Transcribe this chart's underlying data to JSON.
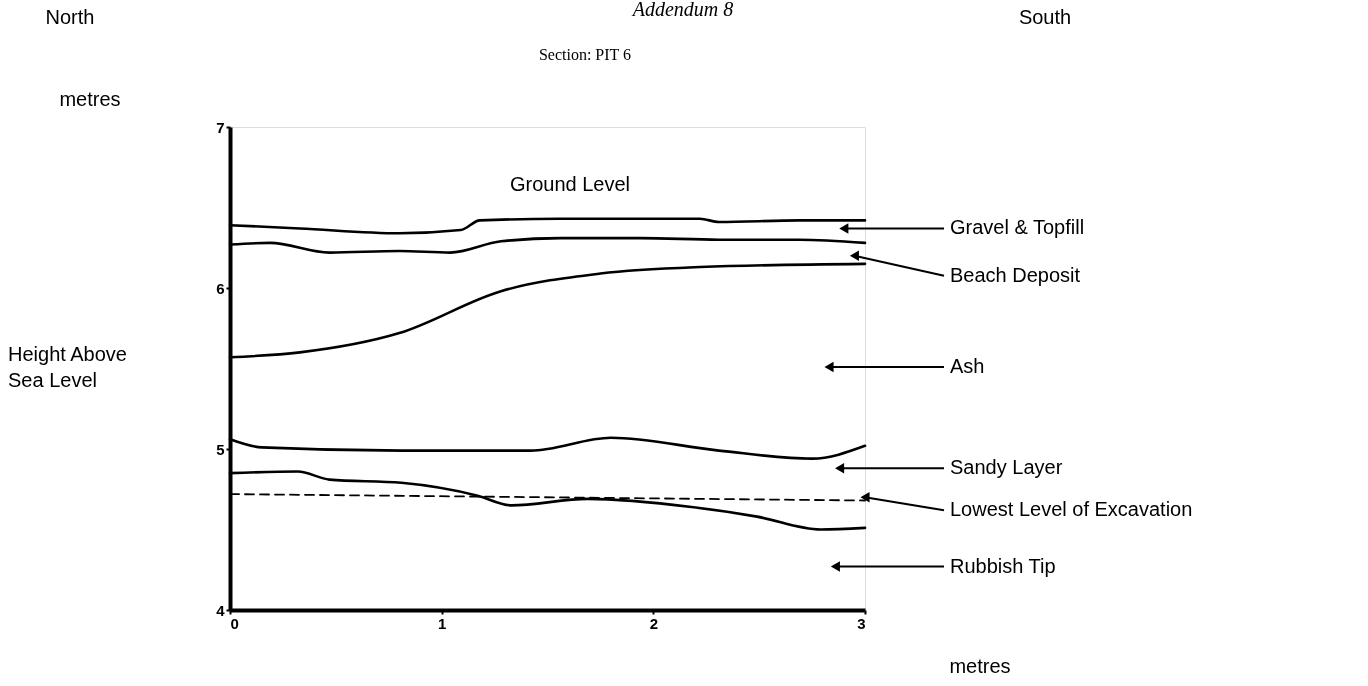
{
  "chart_data": {
    "type": "line",
    "title": "Addendum 8",
    "subtitle": "Section: PIT 6",
    "xlabel": "metres",
    "ylabel": "Height Above Sea Level",
    "xlim": [
      0,
      3
    ],
    "ylim": [
      4,
      7
    ],
    "xticks": [
      0,
      1,
      2,
      3
    ],
    "yticks": [
      4,
      5,
      6,
      7
    ],
    "grid": false,
    "line_style": "solid",
    "series": [
      {
        "color": "#000000",
        "x": [
          0,
          0.33,
          0.8,
          1.09,
          1.18,
          1.56,
          2.22,
          2.31,
          2.69,
          3
        ],
        "values": [
          6.39,
          6.37,
          6.34,
          6.36,
          6.42,
          6.43,
          6.43,
          6.41,
          6.42,
          6.42
        ]
      },
      {
        "color": "#000000",
        "x": [
          0,
          0.19,
          0.47,
          0.8,
          1.04,
          1.28,
          1.56,
          1.94,
          2.31,
          2.69,
          3
        ],
        "values": [
          6.27,
          6.28,
          6.22,
          6.23,
          6.22,
          6.29,
          6.31,
          6.31,
          6.3,
          6.3,
          6.28
        ]
      },
      {
        "color": "#000000",
        "x": [
          0,
          0.33,
          0.8,
          1.28,
          1.75,
          2.22,
          3
        ],
        "values": [
          5.57,
          5.6,
          5.72,
          5.98,
          6.09,
          6.13,
          6.15
        ]
      },
      {
        "color": "#000000",
        "x": [
          0,
          0.15,
          0.81,
          1.42,
          1.8,
          2.31,
          2.75,
          3
        ],
        "values": [
          5.06,
          5.01,
          4.99,
          4.99,
          5.07,
          4.99,
          4.94,
          5.02
        ]
      },
      {
        "color": "#000000",
        "x": [
          0,
          0.32,
          0.47,
          0.81,
          1.17,
          1.33,
          1.69,
          2.18,
          2.49,
          2.79,
          3
        ],
        "values": [
          4.85,
          4.86,
          4.81,
          4.79,
          4.71,
          4.65,
          4.69,
          4.64,
          4.58,
          4.5,
          4.51
        ]
      },
      {
        "color": "#000000",
        "x": [
          0,
          3
        ],
        "values": [
          4.72,
          4.68
        ],
        "line_style": "dashed"
      }
    ],
    "annotations": [
      "North",
      "South",
      "metres",
      "Ground Level",
      {
        "text": "Gravel & Topfill",
        "x": 2.9,
        "y": 6.37
      },
      {
        "text": "Beach Deposit",
        "x": 2.95,
        "y": 6.2
      },
      {
        "text": "Ash",
        "x": 2.83,
        "y": 5.51
      },
      {
        "text": "Sandy Layer",
        "x": 2.88,
        "y": 4.88
      },
      {
        "text": "Lowest Level of Excavation",
        "x": 3,
        "y": 4.7
      },
      {
        "text": "Rubbish Tip",
        "x": 2.86,
        "y": 4.27
      }
    ]
  }
}
